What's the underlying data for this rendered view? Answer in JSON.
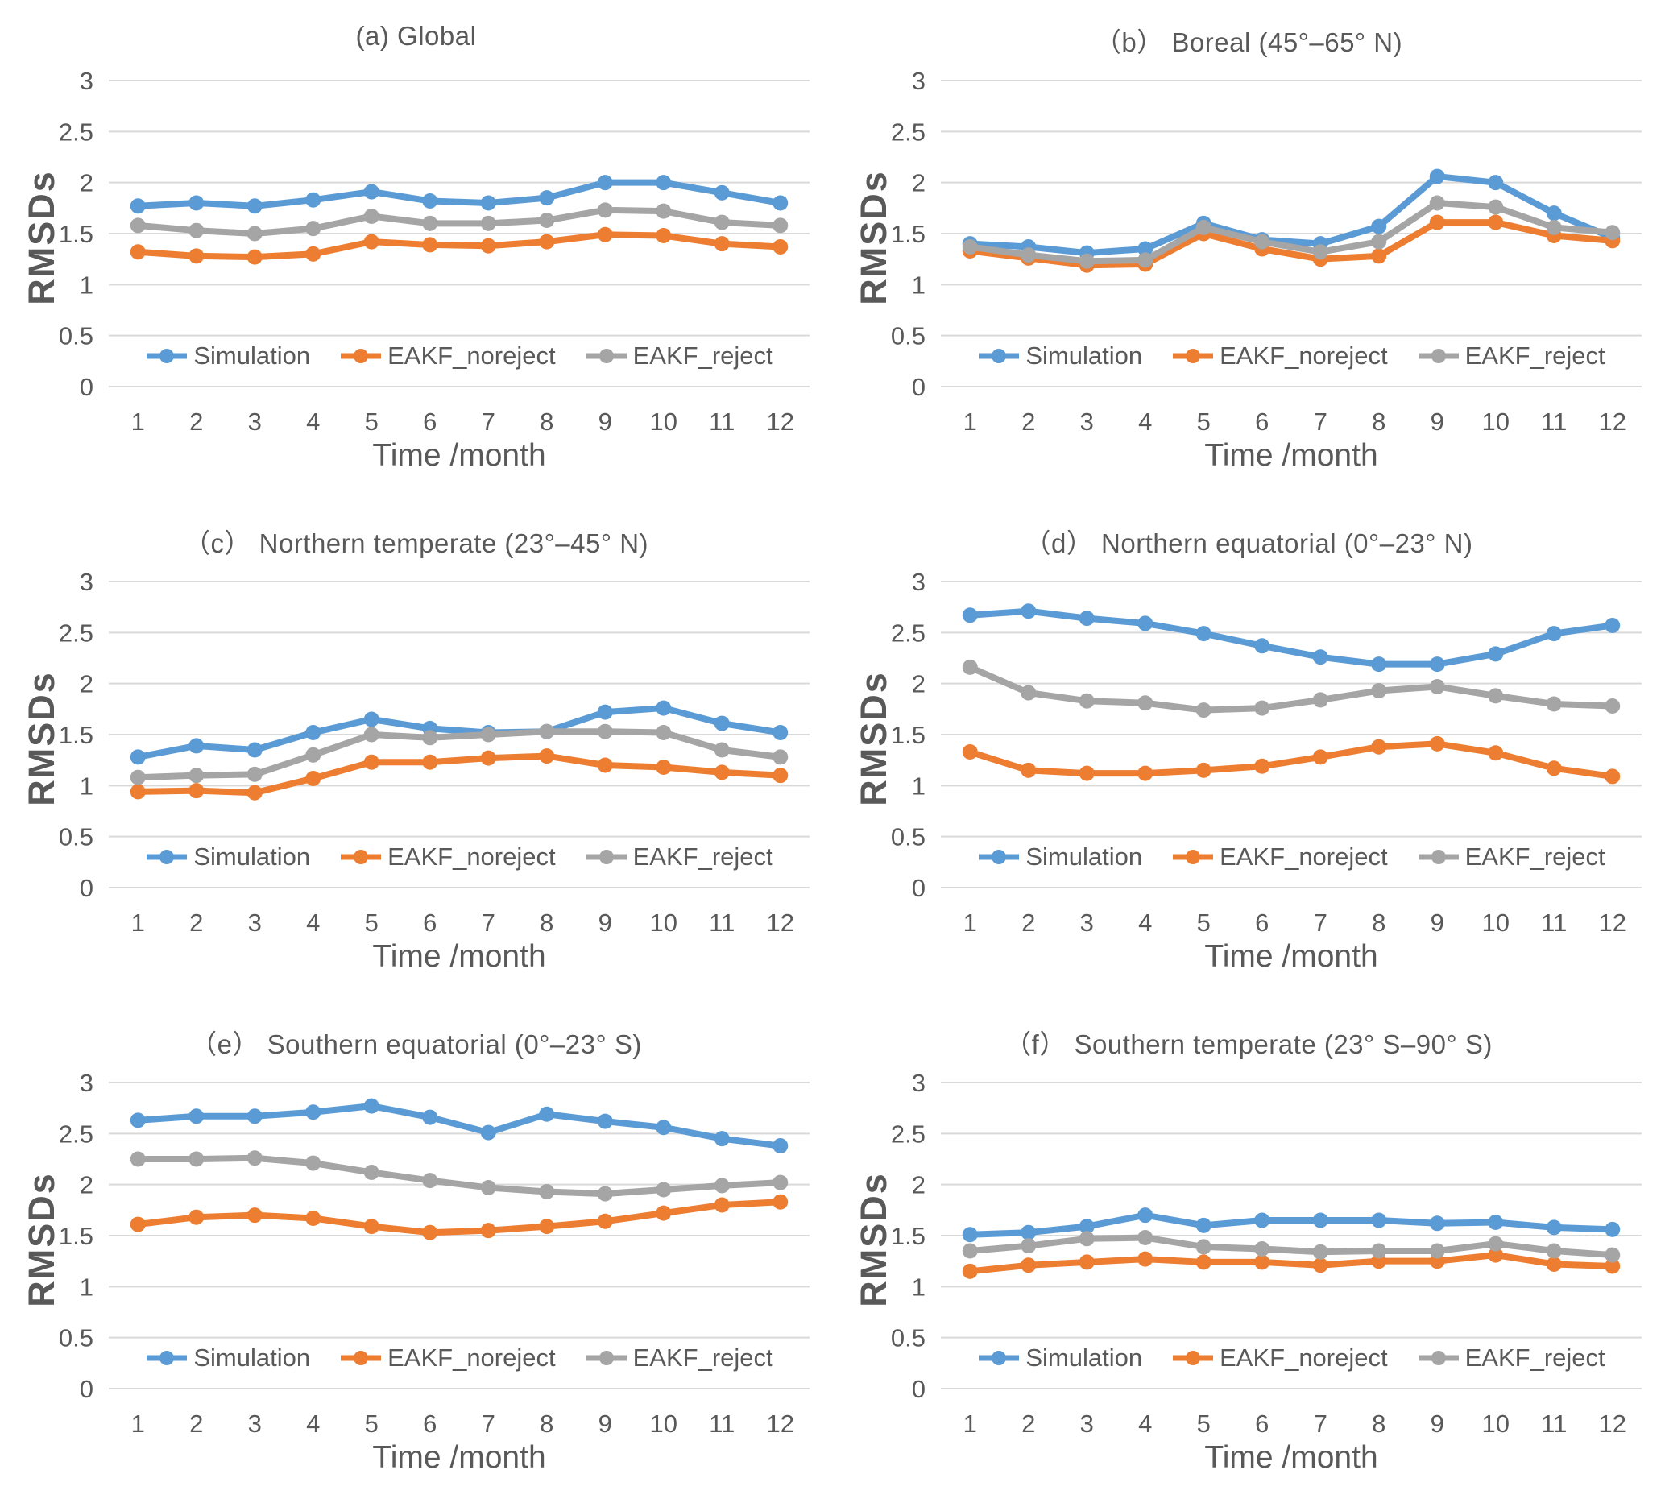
{
  "figure_ylabel": "RMSDs",
  "figure_xlabel": "Time /month",
  "colors": {
    "simulation": "#5B9BD5",
    "eakf_noreject": "#ED7D31",
    "eakf_reject": "#A5A5A5",
    "gridline": "#D9D9D9",
    "text": "#595959"
  },
  "chart_data": [
    {
      "type": "line",
      "panel": "a",
      "title": "(a) Global",
      "xlabel": "Time /month",
      "ylabel": "RMSDs",
      "categories": [
        1,
        2,
        3,
        4,
        5,
        6,
        7,
        8,
        9,
        10,
        11,
        12
      ],
      "ylim": [
        0,
        3
      ],
      "ytick_step": 0.5,
      "grid": true,
      "legend_position": "inside-bottom",
      "series": [
        {
          "name": "Simulation",
          "color": "#5B9BD5",
          "values": [
            1.77,
            1.8,
            1.77,
            1.83,
            1.91,
            1.82,
            1.8,
            1.85,
            2.0,
            2.0,
            1.9,
            1.8
          ]
        },
        {
          "name": "EAKF_noreject",
          "color": "#ED7D31",
          "values": [
            1.32,
            1.28,
            1.27,
            1.3,
            1.42,
            1.39,
            1.38,
            1.42,
            1.49,
            1.48,
            1.4,
            1.37
          ]
        },
        {
          "name": "EAKF_reject",
          "color": "#A5A5A5",
          "values": [
            1.58,
            1.53,
            1.5,
            1.55,
            1.67,
            1.6,
            1.6,
            1.63,
            1.73,
            1.72,
            1.61,
            1.58
          ]
        }
      ]
    },
    {
      "type": "line",
      "panel": "b",
      "title": "（b） Boreal (45°–65° N)",
      "xlabel": "Time /month",
      "ylabel": "RMSDs",
      "categories": [
        1,
        2,
        3,
        4,
        5,
        6,
        7,
        8,
        9,
        10,
        11,
        12
      ],
      "ylim": [
        0,
        3
      ],
      "ytick_step": 0.5,
      "grid": true,
      "legend_position": "inside-bottom",
      "series": [
        {
          "name": "Simulation",
          "color": "#5B9BD5",
          "values": [
            1.4,
            1.37,
            1.31,
            1.35,
            1.6,
            1.44,
            1.4,
            1.57,
            2.06,
            2.0,
            1.7,
            1.46
          ]
        },
        {
          "name": "EAKF_noreject",
          "color": "#ED7D31",
          "values": [
            1.33,
            1.26,
            1.19,
            1.2,
            1.5,
            1.35,
            1.25,
            1.28,
            1.61,
            1.61,
            1.48,
            1.43
          ]
        },
        {
          "name": "EAKF_reject",
          "color": "#A5A5A5",
          "values": [
            1.37,
            1.29,
            1.23,
            1.24,
            1.56,
            1.42,
            1.32,
            1.42,
            1.8,
            1.76,
            1.56,
            1.51
          ]
        }
      ]
    },
    {
      "type": "line",
      "panel": "c",
      "title": "（c） Northern temperate (23°–45° N)",
      "xlabel": "Time /month",
      "ylabel": "RMSDs",
      "categories": [
        1,
        2,
        3,
        4,
        5,
        6,
        7,
        8,
        9,
        10,
        11,
        12
      ],
      "ylim": [
        0,
        3
      ],
      "ytick_step": 0.5,
      "grid": true,
      "legend_position": "inside-bottom",
      "series": [
        {
          "name": "Simulation",
          "color": "#5B9BD5",
          "values": [
            1.28,
            1.39,
            1.35,
            1.52,
            1.65,
            1.56,
            1.52,
            1.53,
            1.72,
            1.76,
            1.61,
            1.52
          ]
        },
        {
          "name": "EAKF_noreject",
          "color": "#ED7D31",
          "values": [
            0.94,
            0.95,
            0.93,
            1.07,
            1.23,
            1.23,
            1.27,
            1.29,
            1.2,
            1.18,
            1.13,
            1.1
          ]
        },
        {
          "name": "EAKF_reject",
          "color": "#A5A5A5",
          "values": [
            1.08,
            1.1,
            1.11,
            1.3,
            1.5,
            1.47,
            1.5,
            1.53,
            1.53,
            1.52,
            1.35,
            1.28
          ]
        }
      ]
    },
    {
      "type": "line",
      "panel": "d",
      "title": "（d） Northern equatorial (0°–23° N)",
      "xlabel": "Time /month",
      "ylabel": "RMSDs",
      "categories": [
        1,
        2,
        3,
        4,
        5,
        6,
        7,
        8,
        9,
        10,
        11,
        12
      ],
      "ylim": [
        0,
        3
      ],
      "ytick_step": 0.5,
      "grid": true,
      "legend_position": "inside-bottom",
      "series": [
        {
          "name": "Simulation",
          "color": "#5B9BD5",
          "values": [
            2.67,
            2.71,
            2.64,
            2.59,
            2.49,
            2.37,
            2.26,
            2.19,
            2.19,
            2.29,
            2.49,
            2.57
          ]
        },
        {
          "name": "EAKF_noreject",
          "color": "#ED7D31",
          "values": [
            1.33,
            1.15,
            1.12,
            1.12,
            1.15,
            1.19,
            1.28,
            1.38,
            1.41,
            1.32,
            1.17,
            1.09
          ]
        },
        {
          "name": "EAKF_reject",
          "color": "#A5A5A5",
          "values": [
            2.16,
            1.91,
            1.83,
            1.81,
            1.74,
            1.76,
            1.84,
            1.93,
            1.97,
            1.88,
            1.8,
            1.78
          ]
        }
      ]
    },
    {
      "type": "line",
      "panel": "e",
      "title": "（e） Southern equatorial (0°–23° S)",
      "xlabel": "Time /month",
      "ylabel": "RMSDs",
      "categories": [
        1,
        2,
        3,
        4,
        5,
        6,
        7,
        8,
        9,
        10,
        11,
        12
      ],
      "ylim": [
        0,
        3
      ],
      "ytick_step": 0.5,
      "grid": true,
      "legend_position": "inside-bottom",
      "series": [
        {
          "name": "Simulation",
          "color": "#5B9BD5",
          "values": [
            2.63,
            2.67,
            2.67,
            2.71,
            2.77,
            2.66,
            2.51,
            2.69,
            2.62,
            2.56,
            2.45,
            2.38
          ]
        },
        {
          "name": "EAKF_noreject",
          "color": "#ED7D31",
          "values": [
            1.61,
            1.68,
            1.7,
            1.67,
            1.59,
            1.53,
            1.55,
            1.59,
            1.64,
            1.72,
            1.8,
            1.83
          ]
        },
        {
          "name": "EAKF_reject",
          "color": "#A5A5A5",
          "values": [
            2.25,
            2.25,
            2.26,
            2.21,
            2.12,
            2.04,
            1.97,
            1.93,
            1.91,
            1.95,
            1.99,
            2.02
          ]
        }
      ]
    },
    {
      "type": "line",
      "panel": "f",
      "title": "（f） Southern temperate (23° S–90° S)",
      "xlabel": "Time /month",
      "ylabel": "RMSDs",
      "categories": [
        1,
        2,
        3,
        4,
        5,
        6,
        7,
        8,
        9,
        10,
        11,
        12
      ],
      "ylim": [
        0,
        3
      ],
      "ytick_step": 0.5,
      "grid": true,
      "legend_position": "inside-bottom",
      "series": [
        {
          "name": "Simulation",
          "color": "#5B9BD5",
          "values": [
            1.51,
            1.53,
            1.59,
            1.7,
            1.6,
            1.65,
            1.65,
            1.65,
            1.62,
            1.63,
            1.58,
            1.56
          ]
        },
        {
          "name": "EAKF_noreject",
          "color": "#ED7D31",
          "values": [
            1.15,
            1.21,
            1.24,
            1.27,
            1.24,
            1.24,
            1.21,
            1.25,
            1.25,
            1.31,
            1.22,
            1.2
          ]
        },
        {
          "name": "EAKF_reject",
          "color": "#A5A5A5",
          "values": [
            1.35,
            1.4,
            1.47,
            1.48,
            1.39,
            1.37,
            1.34,
            1.35,
            1.35,
            1.42,
            1.35,
            1.31
          ]
        }
      ]
    }
  ]
}
